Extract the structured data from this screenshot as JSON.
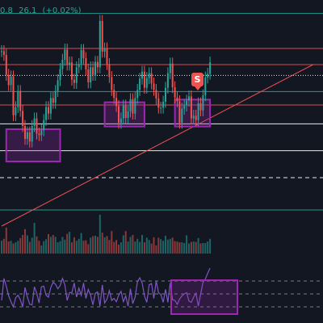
{
  "readout": {
    "part1": "0.8",
    "part2": "26.1",
    "part3": "(+0.02%)",
    "color": "#26a69a"
  },
  "signal": {
    "label": "S",
    "color": "#ef5350"
  },
  "colors": {
    "background": "#131722",
    "up": "#26a69a",
    "down": "#ef5350",
    "highlight": "#9c27b0",
    "rsi_line": "#7e57c2",
    "volume": "#4db6ac"
  },
  "chart_data": {
    "type": "candlestick",
    "title": "",
    "xlabel": "",
    "ylabel": "",
    "grid": false,
    "legend": "none",
    "ylim": [
      40,
      100
    ],
    "horizontal_levels": [
      {
        "value": 97.5,
        "color": "#26a69a",
        "style": "solid"
      },
      {
        "value": 91,
        "color": "#ef5350",
        "style": "solid"
      },
      {
        "value": 88,
        "color": "#ef5350",
        "style": "solid"
      },
      {
        "value": 86,
        "color": "#ffffff",
        "style": "dotted"
      },
      {
        "value": 83,
        "color": "#26a69a",
        "style": "solid"
      },
      {
        "value": 80.5,
        "color": "#ef5350",
        "style": "solid"
      },
      {
        "value": 77,
        "color": "#ffffff",
        "style": "solid"
      },
      {
        "value": 72,
        "color": "#ffffff",
        "style": "solid"
      },
      {
        "value": 67,
        "color": "#ffffff",
        "style": "dashed"
      },
      {
        "value": 61,
        "color": "#26a69a",
        "style": "solid"
      }
    ],
    "trendline": {
      "color": "#ef5350",
      "x": [
        0,
        133
      ],
      "y": [
        58,
        88
      ]
    },
    "highlight_zones": [
      {
        "x": [
          2,
          25
        ],
        "y": [
          70,
          76
        ]
      },
      {
        "x": [
          44,
          61
        ],
        "y": [
          76.5,
          81
        ]
      },
      {
        "x": [
          74,
          89
        ],
        "y": [
          76.5,
          81.5
        ]
      }
    ],
    "series": [
      {
        "type": "price",
        "values": [
          90.5,
          89.8,
          86.1,
          84.2,
          85.8,
          78.6,
          80.1,
          83.1,
          79.4,
          76.6,
          74.2,
          75.4,
          73.7,
          76.6,
          78.0,
          75.2,
          74.9,
          75.8,
          77.7,
          80.1,
          78.9,
          81.8,
          80.9,
          83.1,
          85.1,
          87.2,
          88.9,
          90.8,
          88.0,
          88.4,
          85.2,
          84.6,
          87.5,
          88.1,
          90.7,
          89.2,
          87.1,
          84.7,
          87.5,
          86.1,
          88.5,
          87.5,
          96.1,
          90.4,
          91.0,
          88.1,
          85.7,
          83.3,
          81.8,
          80.3,
          77.2,
          78.0,
          80.4,
          78.1,
          79.3,
          81.6,
          78.9,
          81.8,
          83.3,
          85.4,
          86.7,
          83.7,
          85.5,
          86.4,
          84.5,
          83.3,
          81.7,
          80.0,
          80.0,
          81.1,
          83.7,
          86.4,
          88.2,
          83.8,
          81.9,
          81.2,
          77.2,
          79.8,
          80.4,
          81.3,
          82.1,
          78.0,
          78.5,
          77.7,
          80.8,
          79.5,
          82.3,
          85.6,
          86.3,
          88.4
        ]
      },
      {
        "type": "volume",
        "values": [
          0.33,
          0.38,
          0.67,
          0.31,
          0.33,
          0.26,
          0.29,
          0.33,
          0.4,
          0.48,
          0.63,
          0.47,
          0.3,
          0.41,
          0.79,
          0.44,
          0.33,
          0.21,
          0.32,
          0.37,
          0.5,
          0.43,
          0.48,
          0.43,
          0.29,
          0.32,
          0.43,
          0.36,
          0.51,
          0.56,
          0.29,
          0.42,
          0.33,
          0.38,
          0.53,
          0.33,
          0.34,
          0.24,
          0.41,
          0.45,
          0.46,
          0.43,
          1.0,
          0.54,
          0.42,
          0.45,
          0.35,
          0.58,
          0.3,
          0.35,
          0.23,
          0.29,
          0.47,
          0.58,
          0.31,
          0.43,
          0.48,
          0.31,
          0.38,
          0.3,
          0.48,
          0.29,
          0.41,
          0.35,
          0.26,
          0.42,
          0.21,
          0.41,
          0.37,
          0.33,
          0.46,
          0.36,
          0.38,
          0.41,
          0.32,
          0.31,
          0.29,
          0.29,
          0.27,
          0.47,
          0.26,
          0.3,
          0.31,
          0.3,
          0.4,
          0.26,
          0.27,
          0.27,
          0.31,
          0.38
        ]
      },
      {
        "type": "rsi",
        "ylim": [
          0,
          100
        ],
        "levels": [
          70,
          50,
          30
        ],
        "values": [
          40,
          74,
          62,
          47,
          38,
          30,
          44,
          48,
          41,
          30,
          60,
          45,
          34,
          33,
          61,
          51,
          36,
          61,
          62,
          48,
          45,
          60,
          68,
          65,
          58,
          63,
          74,
          64,
          40,
          52,
          52,
          67,
          45,
          59,
          48,
          67,
          43,
          57,
          48,
          33,
          51,
          53,
          31,
          64,
          36,
          42,
          55,
          40,
          43,
          38,
          48,
          54,
          38,
          47,
          31,
          58,
          35,
          45,
          69,
          75,
          67,
          47,
          37,
          64,
          66,
          43,
          70,
          52,
          49,
          37,
          57,
          37,
          67,
          41,
          40,
          34,
          42,
          47,
          50,
          52,
          39,
          37,
          45,
          51,
          31,
          50,
          68,
          73,
          82,
          90
        ]
      }
    ]
  }
}
